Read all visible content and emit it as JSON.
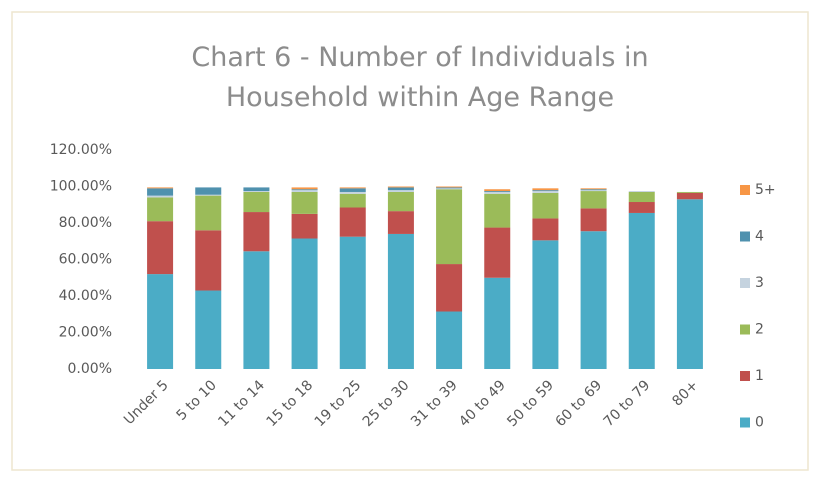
{
  "chart_data": {
    "type": "stacked_bar",
    "title": "Chart 6 - Number of Individuals in Household within Age Range",
    "categories": [
      "Under 5",
      "5 to 10",
      "11 to 14",
      "15 to 18",
      "19 to 25",
      "25 to 30",
      "31 to 39",
      "40 to 49",
      "50 to 59",
      "60 to 69",
      "70 to 79",
      "80+"
    ],
    "series": [
      {
        "name": "0",
        "color": "#4bacc6",
        "values": [
          52,
          43,
          64.5,
          71.5,
          72.5,
          74,
          31.5,
          50,
          70.5,
          75.5,
          85.5,
          93
        ]
      },
      {
        "name": "1",
        "color": "#c0504d",
        "values": [
          29,
          33,
          21.5,
          13.5,
          16,
          12.5,
          26,
          27.5,
          12,
          12.5,
          6,
          3.5
        ]
      },
      {
        "name": "2",
        "color": "#9bbb59",
        "values": [
          13,
          19,
          11,
          12,
          7.5,
          10.5,
          41,
          18.5,
          14,
          9.5,
          5.5,
          0.5
        ]
      },
      {
        "name": "3",
        "color": "#c5d3df",
        "values": [
          1,
          0.5,
          0.5,
          1,
          1,
          1,
          0.5,
          1,
          1,
          0.5,
          0.5,
          0
        ]
      },
      {
        "name": "4",
        "color": "#4f91ae",
        "values": [
          4,
          4,
          2,
          0.5,
          2,
          1.5,
          0.5,
          0.5,
          0.5,
          0.5,
          0,
          0
        ]
      },
      {
        "name": "5+",
        "color": "#f79646",
        "values": [
          0.5,
          0,
          0,
          1,
          0.5,
          0.5,
          0.5,
          1,
          1,
          0.5,
          0,
          0
        ]
      }
    ],
    "ylim": [
      0,
      120
    ],
    "yticks": [
      {
        "value": 0,
        "label": "0.00%"
      },
      {
        "value": 20,
        "label": "20.00%"
      },
      {
        "value": 40,
        "label": "40.00%"
      },
      {
        "value": 60,
        "label": "60.00%"
      },
      {
        "value": 80,
        "label": "80.00%"
      },
      {
        "value": 100,
        "label": "100.00%"
      },
      {
        "value": 120,
        "label": "120.00%"
      }
    ],
    "grid": false,
    "legend": "right"
  }
}
